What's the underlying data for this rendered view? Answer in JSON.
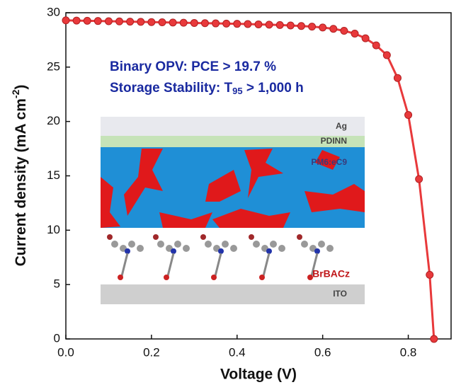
{
  "chart_data": {
    "type": "line",
    "x_label": "Voltage (V)",
    "y_label": {
      "text": "Current density (mA cm",
      "sup": "-2",
      "end": ")"
    },
    "annotations": [
      {
        "text": "Binary OPV: PCE > 19.7 %"
      },
      {
        "text": "Storage Stability: T",
        "sub": "95",
        "end": " > 1,000 h"
      }
    ],
    "inset": {
      "layers": [
        "Ag",
        "PDINN",
        "PM6:eC9",
        "BrBACz",
        "ITO"
      ]
    },
    "x": [
      0,
      0.025,
      0.05,
      0.075,
      0.1,
      0.125,
      0.15,
      0.175,
      0.2,
      0.225,
      0.25,
      0.275,
      0.3,
      0.325,
      0.35,
      0.375,
      0.4,
      0.425,
      0.45,
      0.475,
      0.5,
      0.525,
      0.55,
      0.575,
      0.6,
      0.625,
      0.65,
      0.675,
      0.7,
      0.725,
      0.75,
      0.775,
      0.8,
      0.825,
      0.85,
      0.86
    ],
    "series": [
      {
        "color": "#e8393b",
        "values": [
          29.3,
          29.28,
          29.26,
          29.24,
          29.22,
          29.2,
          29.18,
          29.16,
          29.14,
          29.12,
          29.1,
          29.08,
          29.06,
          29.04,
          29.02,
          29.0,
          28.98,
          28.96,
          28.93,
          28.9,
          28.87,
          28.83,
          28.78,
          28.72,
          28.64,
          28.52,
          28.34,
          28.08,
          27.65,
          27.0,
          26.1,
          24.0,
          20.6,
          14.7,
          5.9,
          0
        ]
      }
    ],
    "xlim": [
      0,
      0.9
    ],
    "xticks": [
      {
        "value": 0,
        "label": "0.0"
      },
      0.2,
      0.4,
      0.6,
      0.8
    ],
    "ylim": [
      0,
      30
    ],
    "yticks": [
      0,
      5,
      10,
      15,
      20,
      25,
      30
    ]
  }
}
